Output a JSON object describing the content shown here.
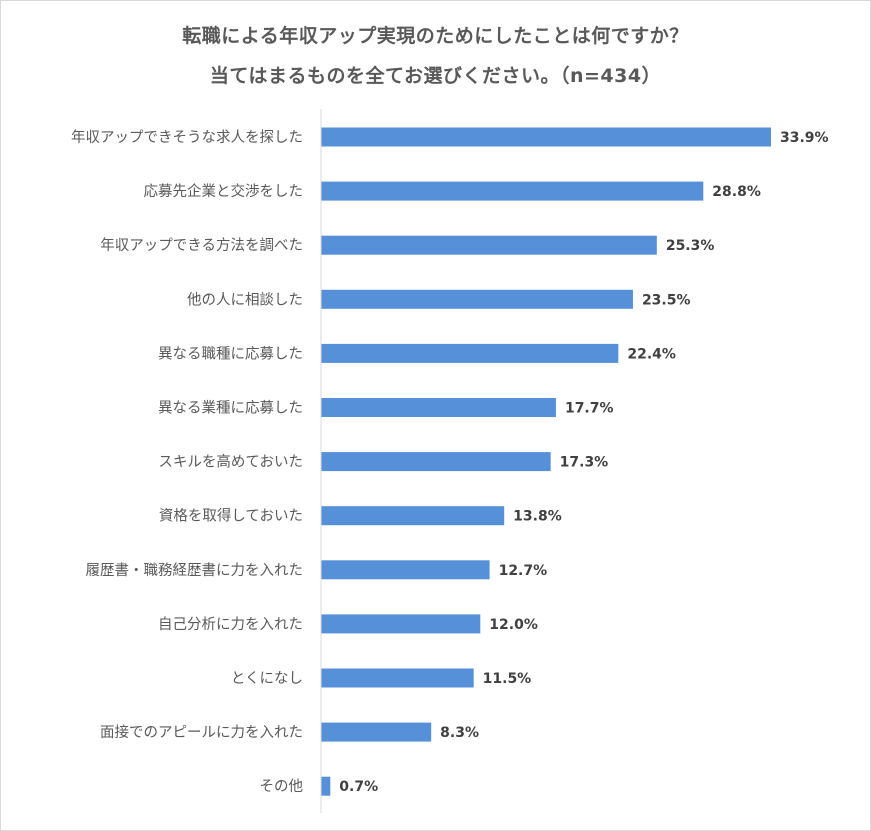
{
  "chart_data": {
    "type": "bar",
    "orientation": "horizontal",
    "title": [
      "転職による年収アップ実現のためにしたことは何ですか？",
      "当てはまるものを全てお選びください。（n=434）"
    ],
    "categories": [
      "年収アップできそうな求人を探した",
      "応募先企業と交渉をした",
      "年収アップできる方法を調べた",
      "他の人に相談した",
      "異なる職種に応募した",
      "異なる業種に応募した",
      "スキルを高めておいた",
      "資格を取得しておいた",
      "履歴書・職務経歴書に力を入れた",
      "自己分析に力を入れた",
      "とくになし",
      "面接でのアピールに力を入れた",
      "その他"
    ],
    "values": [
      33.9,
      28.8,
      25.3,
      23.5,
      22.4,
      17.7,
      17.3,
      13.8,
      12.7,
      12.0,
      11.5,
      8.3,
      0.7
    ],
    "value_labels": [
      "33.9%",
      "28.8%",
      "25.3%",
      "23.5%",
      "22.4%",
      "17.7%",
      "17.3%",
      "13.8%",
      "12.7%",
      "12.0%",
      "11.5%",
      "8.3%",
      "0.7%"
    ],
    "unit": "%",
    "xlim": [
      0,
      33.9
    ],
    "grid": false,
    "legend": "none",
    "bar_color": "#5590d8"
  }
}
